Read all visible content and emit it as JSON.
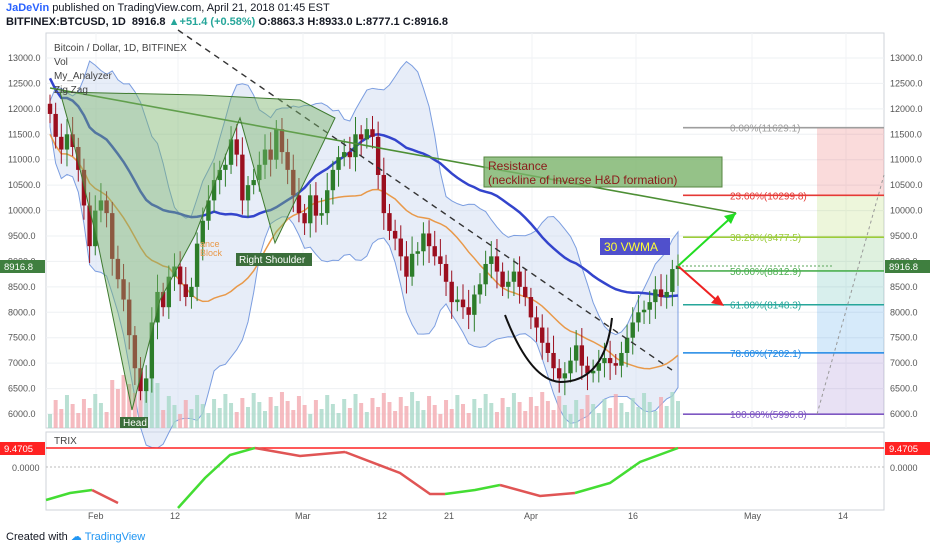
{
  "header": {
    "author": "JaDeVin",
    "published": "published on TradingView.com, April 21, 2018 01:45 EST",
    "symbol": "BITFINEX:BTCUSD, 1D",
    "price": "8916.8",
    "change": "+51.4 (+0.58%)",
    "ohlc": "O:8863.3 H:8933.0 L:8777.1 C:8916.8"
  },
  "legend": {
    "title": "Bitcoin / Dollar, 1D, BITFINEX",
    "items": [
      "Vol",
      "My_Analyzer",
      "Zig Zag"
    ]
  },
  "annotations": {
    "resistance": "Resistance",
    "resistance_sub": "(neckline of inverse H&D formation)",
    "right_shoulder": "Right Shoulder",
    "head": "Head",
    "vwma": "30 VWMA",
    "resistance_block": "ance",
    "block": "Block"
  },
  "price_badge": "8916.8",
  "trix": {
    "label": "TRIX",
    "value": "9.4705",
    "zero": "0.0000"
  },
  "footer": {
    "created": "Created with",
    "brand": "TradingView"
  },
  "colors": {
    "up": "#26a69a",
    "down": "#9b0f1f",
    "upcandle": "#2d7d2a",
    "vwma": "#3344cc",
    "orange": "#e8994a",
    "trix_up": "#44dd33",
    "trix_down": "#e05555",
    "red": "#ff0000"
  },
  "chart_data": {
    "type": "candlestick",
    "y_axis": {
      "ticks": [
        "13000.0",
        "12500.0",
        "12000.0",
        "11500.0",
        "11000.0",
        "10500.0",
        "10000.0",
        "9500.0",
        "9000.0",
        "8500.0",
        "8000.0",
        "7500.0",
        "7000.0",
        "6500.0",
        "6000.0"
      ],
      "ylim": [
        5800,
        13300
      ]
    },
    "x_axis": {
      "ticks": [
        "Feb",
        "12",
        "Mar",
        "12",
        "21",
        "Apr",
        "16",
        "May",
        "14"
      ]
    },
    "fibonacci": [
      {
        "label": "0.00%(11629.1)",
        "price": 11629.1,
        "color": "#9e9e9e"
      },
      {
        "label": "23.60%(10299.8)",
        "price": 10299.8,
        "color": "#e53935"
      },
      {
        "label": "38.20%(9477.5)",
        "price": 9477.5,
        "color": "#9ccc3a"
      },
      {
        "label": "50.00%(8812.9)",
        "price": 8812.9,
        "color": "#4caf50"
      },
      {
        "label": "61.80%(8148.3)",
        "price": 8148.3,
        "color": "#26a69a"
      },
      {
        "label": "78.60%(7202.1)",
        "price": 7202.1,
        "color": "#1e88e5"
      },
      {
        "label": "100.00%(5996.8)",
        "price": 5996.8,
        "color": "#7e57c2"
      }
    ],
    "closes": [
      11900,
      11450,
      11200,
      11500,
      11250,
      10800,
      10100,
      9300,
      10000,
      10200,
      9950,
      9050,
      8650,
      8250,
      7550,
      6900,
      6450,
      6700,
      7800,
      8400,
      8100,
      8700,
      8900,
      8550,
      8300,
      8500,
      9350,
      9800,
      10200,
      10600,
      10800,
      10900,
      11400,
      11100,
      10200,
      10500,
      10600,
      10900,
      11200,
      11000,
      11600,
      11150,
      10800,
      10300,
      9950,
      9750,
      10300,
      9900,
      9950,
      10400,
      10800,
      11050,
      11150,
      11050,
      11500,
      11400,
      11600,
      11450,
      10700,
      9950,
      9600,
      9450,
      9100,
      8700,
      9150,
      9200,
      9550,
      9300,
      9100,
      8950,
      8600,
      8200,
      8250,
      8100,
      7950,
      8350,
      8550,
      8950,
      9100,
      8800,
      8500,
      8600,
      8800,
      8500,
      8300,
      7900,
      7700,
      7400,
      7200,
      6900,
      6700,
      6800,
      7050,
      7350,
      6950,
      6800,
      6850,
      7000,
      7100,
      7000,
      6950,
      7200,
      7500,
      7800,
      8000,
      8050,
      8200,
      8450,
      8300,
      8400,
      8850,
      8917
    ]
  }
}
